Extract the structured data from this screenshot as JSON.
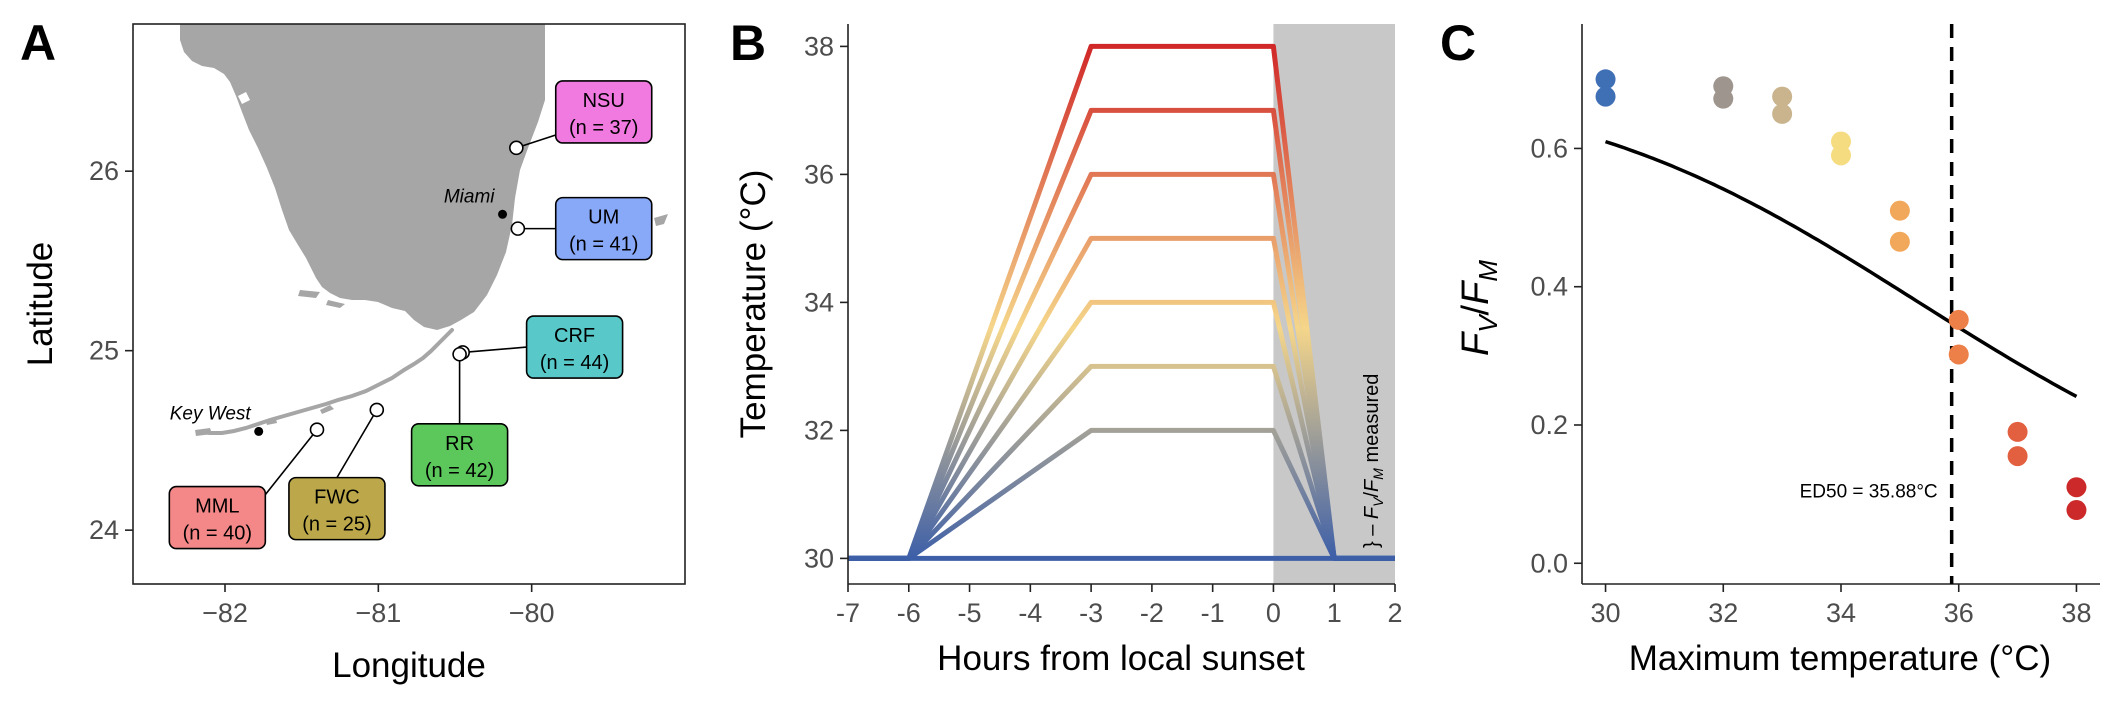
{
  "panels": {
    "a": {
      "letter": "A"
    },
    "b": {
      "letter": "B"
    },
    "c": {
      "letter": "C"
    }
  },
  "chart_data": [
    {
      "type": "map",
      "panel": "A",
      "xlabel": "Longitude",
      "ylabel": "Latitude",
      "xlim": [
        -82.6,
        -79.0
      ],
      "ylim": [
        23.7,
        26.82
      ],
      "xticks": [
        -82,
        -81,
        -80
      ],
      "xtick_labels": [
        "−82",
        "−81",
        "−80"
      ],
      "yticks": [
        24,
        25,
        26
      ],
      "ytick_labels": [
        "24",
        "25",
        "26"
      ],
      "land_color": "#a6a6a6",
      "cities": [
        {
          "name": "Miami",
          "lon": -80.19,
          "lat": 25.76
        },
        {
          "name": "Key West",
          "lon": -81.78,
          "lat": 24.55
        }
      ],
      "sites": [
        {
          "code": "NSU",
          "n_label": "(n = 37)",
          "color": "#f07ae0",
          "lon": -80.1,
          "lat": 26.13,
          "box_lon": -79.53,
          "box_lat": 26.33
        },
        {
          "code": "UM",
          "n_label": "(n = 41)",
          "color": "#88a8f8",
          "lon": -80.09,
          "lat": 25.68,
          "box_lon": -79.53,
          "box_lat": 25.68
        },
        {
          "code": "CRF",
          "n_label": "(n = 44)",
          "color": "#58c8c8",
          "lon": -80.45,
          "lat": 24.99,
          "box_lon": -79.72,
          "box_lat": 25.02
        },
        {
          "code": "RR",
          "n_label": "(n = 42)",
          "color": "#5cc85c",
          "lon": -80.47,
          "lat": 24.98,
          "box_lon": -80.47,
          "box_lat": 24.42
        },
        {
          "code": "FWC",
          "n_label": "(n = 25)",
          "color": "#bca84a",
          "lon": -81.01,
          "lat": 24.67,
          "box_lon": -81.27,
          "box_lat": 24.12
        },
        {
          "code": "MML",
          "n_label": "(n = 40)",
          "color": "#f48888",
          "lon": -81.4,
          "lat": 24.56,
          "box_lon": -82.05,
          "box_lat": 24.07
        }
      ]
    },
    {
      "type": "line",
      "panel": "B",
      "xlabel": "Hours from local sunset",
      "ylabel": "Temperature (°C)",
      "xlim": [
        -7,
        2
      ],
      "ylim": [
        29.6,
        38.35
      ],
      "xticks": [
        -7,
        -6,
        -5,
        -4,
        -3,
        -2,
        -1,
        0,
        1,
        2
      ],
      "xtick_labels": [
        "-7",
        "-6",
        "-5",
        "-4",
        "-3",
        "-2",
        "-1",
        "0",
        "1",
        "2"
      ],
      "yticks": [
        30,
        32,
        34,
        36,
        38
      ],
      "ytick_labels": [
        "30",
        "32",
        "34",
        "36",
        "38"
      ],
      "shaded_region": [
        0,
        2
      ],
      "shade_color": "#c8c8c8",
      "annotation_prefix": "} – ",
      "annotation_suffix": " measured",
      "time_points": [
        -7,
        -6,
        -3,
        0,
        1,
        2
      ],
      "color_low": "#3d5fa8",
      "color_mid": "#f5d68a",
      "color_high": "#d02828",
      "series": [
        {
          "values": [
            30,
            30,
            30,
            30,
            30,
            30
          ]
        },
        {
          "values": [
            30,
            30,
            32,
            32,
            30,
            30
          ]
        },
        {
          "values": [
            30,
            30,
            33,
            33,
            30,
            30
          ]
        },
        {
          "values": [
            30,
            30,
            34,
            34,
            30,
            30
          ]
        },
        {
          "values": [
            30,
            30,
            35,
            35,
            30,
            30
          ]
        },
        {
          "values": [
            30,
            30,
            36,
            36,
            30,
            30
          ]
        },
        {
          "values": [
            30,
            30,
            37,
            37,
            30,
            30
          ]
        },
        {
          "values": [
            30,
            30,
            38,
            38,
            30,
            30
          ]
        }
      ]
    },
    {
      "type": "scatter",
      "panel": "C",
      "xlabel": "Maximum temperature (°C)",
      "ylabel": "FV/FM",
      "xlim": [
        29.6,
        38.4
      ],
      "ylim": [
        -0.03,
        0.78
      ],
      "xticks": [
        30,
        32,
        34,
        36,
        38
      ],
      "xtick_labels": [
        "30",
        "32",
        "34",
        "36",
        "38"
      ],
      "yticks": [
        0,
        0.2,
        0.4,
        0.6
      ],
      "ytick_labels": [
        "0.0",
        "0.2",
        "0.4",
        "0.6"
      ],
      "ed50": 35.88,
      "ed50_label": "ED50 = 35.88°C",
      "fit": {
        "top": 0.695,
        "slope": 11,
        "ed50": 35.88
      },
      "points": [
        {
          "x": 30,
          "y": 0.7,
          "color": "#3f6fb5"
        },
        {
          "x": 30,
          "y": 0.675,
          "color": "#3f6fb5"
        },
        {
          "x": 32,
          "y": 0.69,
          "color": "#9e968e"
        },
        {
          "x": 32,
          "y": 0.672,
          "color": "#9e968e"
        },
        {
          "x": 33,
          "y": 0.675,
          "color": "#c9b48e"
        },
        {
          "x": 33,
          "y": 0.65,
          "color": "#c9b48e"
        },
        {
          "x": 34,
          "y": 0.61,
          "color": "#f6dc80"
        },
        {
          "x": 34,
          "y": 0.59,
          "color": "#f6dc80"
        },
        {
          "x": 35,
          "y": 0.51,
          "color": "#f2a85a"
        },
        {
          "x": 35,
          "y": 0.465,
          "color": "#f2a85a"
        },
        {
          "x": 36,
          "y": 0.352,
          "color": "#ec8048"
        },
        {
          "x": 36,
          "y": 0.302,
          "color": "#ec8048"
        },
        {
          "x": 37,
          "y": 0.19,
          "color": "#e25f40"
        },
        {
          "x": 37,
          "y": 0.155,
          "color": "#e25f40"
        },
        {
          "x": 38,
          "y": 0.11,
          "color": "#cc2a2a"
        },
        {
          "x": 38,
          "y": 0.077,
          "color": "#cc2a2a"
        }
      ]
    }
  ]
}
